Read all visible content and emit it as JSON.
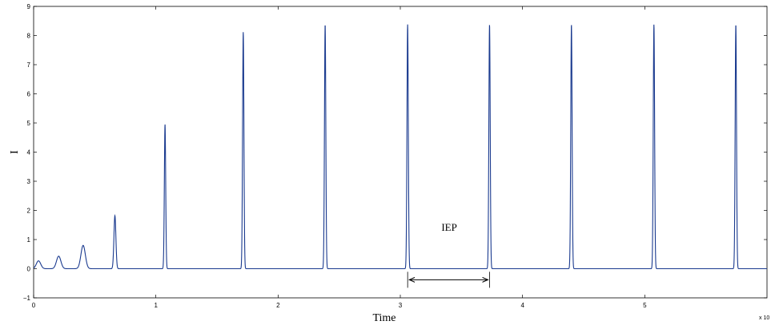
{
  "chart_data": {
    "type": "line",
    "title": "",
    "xlabel": "Time",
    "ylabel": "I",
    "xlim": [
      0,
      6
    ],
    "ylim": [
      -1,
      9
    ],
    "x_multiplier_label": "x 10",
    "x_ticks": [
      0,
      1,
      2,
      3,
      4,
      5
    ],
    "x_tick_labels": [
      "0",
      "1",
      "2",
      "3",
      "4",
      "5"
    ],
    "y_ticks": [
      -1,
      0,
      1,
      2,
      3,
      4,
      5,
      6,
      7,
      8,
      9
    ],
    "y_tick_labels": [
      "−1",
      "0",
      "1",
      "2",
      "3",
      "4",
      "5",
      "6",
      "7",
      "8",
      "9"
    ],
    "grid": false,
    "line_color": "#1a3a8f",
    "baseline": 0,
    "spikes": [
      {
        "x": 0.04,
        "peak": 0.27
      },
      {
        "x": 0.205,
        "peak": 0.43
      },
      {
        "x": 0.405,
        "peak": 0.8
      },
      {
        "x": 0.665,
        "peak": 1.82
      },
      {
        "x": 1.075,
        "peak": 4.95
      },
      {
        "x": 1.715,
        "peak": 8.12
      },
      {
        "x": 2.385,
        "peak": 8.38
      },
      {
        "x": 3.06,
        "peak": 8.38
      },
      {
        "x": 3.73,
        "peak": 8.38
      },
      {
        "x": 4.4,
        "peak": 8.38
      },
      {
        "x": 5.075,
        "peak": 8.38
      },
      {
        "x": 5.745,
        "peak": 8.38
      }
    ],
    "annotations": [
      {
        "text": "IEP",
        "x": 3.4,
        "y": 1.3,
        "from_x": 3.06,
        "to_x": 3.73,
        "arrow_y": -0.38
      }
    ]
  }
}
